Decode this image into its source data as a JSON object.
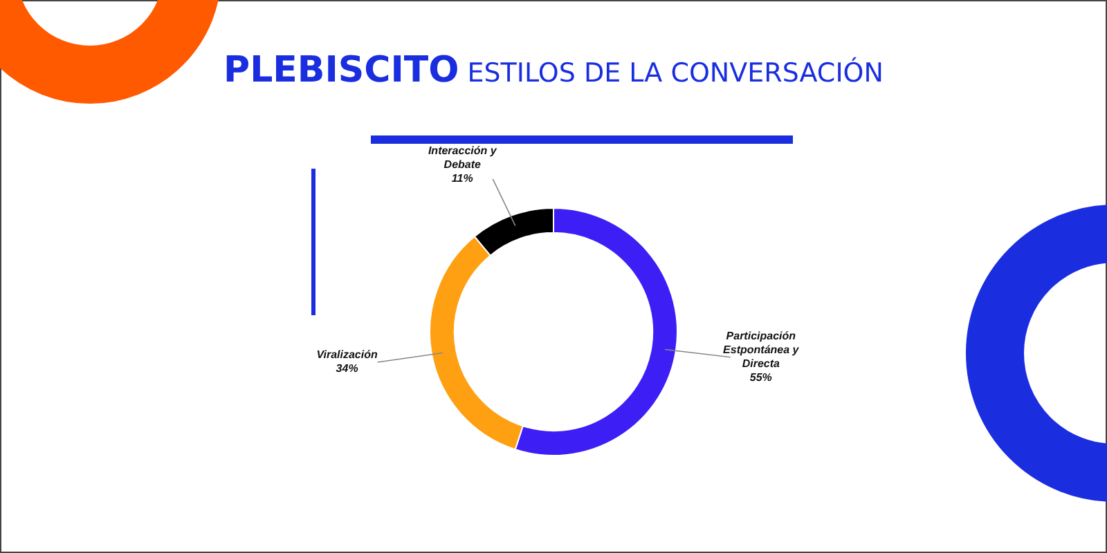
{
  "chart_data": {
    "type": "donut",
    "title": "PLEBISCITO",
    "subtitle": "ESTILOS DE LA CONVERSACIÓN",
    "categories": [
      "Participación Estpontánea y Directa",
      "Viralización",
      "Interacción y Debate"
    ],
    "values": [
      55,
      34,
      11
    ],
    "value_labels": [
      "55%",
      "34%",
      "11%"
    ],
    "colors": [
      "#3d1ff5",
      "#ff9f12",
      "#000000"
    ],
    "legend": false
  }
}
